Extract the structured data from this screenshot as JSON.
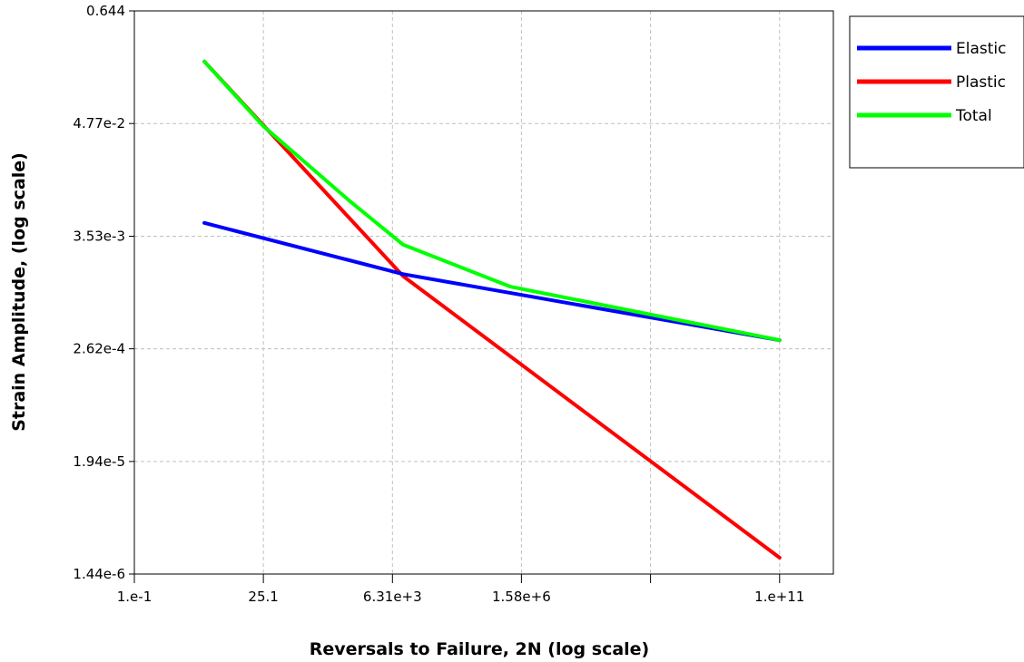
{
  "chart_data": {
    "type": "line",
    "x_scale": "log",
    "y_scale": "log",
    "xlabel": "Reversals to Failure, 2N (log scale)",
    "ylabel": "Strain Amplitude, (log scale)",
    "xlim": [
      0.1,
      1000000000000
    ],
    "ylim": [
      1.44e-06,
      0.644
    ],
    "x_ticks": [
      {
        "value": 0.1,
        "label": "1.e-1"
      },
      {
        "value": 25.1,
        "label": "25.1"
      },
      {
        "value": 6310,
        "label": "6.31e+3"
      },
      {
        "value": 1580000,
        "label": "1.58e+6"
      },
      {
        "value": 398000000,
        "label": ""
      },
      {
        "value": 100000000000,
        "label": "1.e+11"
      }
    ],
    "y_ticks": [
      {
        "value": 1.44e-06,
        "label": "1.44e-6"
      },
      {
        "value": 1.94e-05,
        "label": "1.94e-5"
      },
      {
        "value": 0.000262,
        "label": "2.62e-4"
      },
      {
        "value": 0.00353,
        "label": "3.53e-3"
      },
      {
        "value": 0.0477,
        "label": "4.77e-2"
      },
      {
        "value": 0.644,
        "label": "0.644"
      }
    ],
    "grid": true,
    "legend_position": "right",
    "series": [
      {
        "name": "Elastic",
        "color": "#0000ff",
        "points": [
          [
            2,
            0.0048
          ],
          [
            10000,
            0.00147
          ],
          [
            100000000000,
            0.00032
          ]
        ]
      },
      {
        "name": "Plastic",
        "color": "#ff0000",
        "points": [
          [
            2,
            0.2
          ],
          [
            10000,
            0.0014
          ],
          [
            100000000000,
            2.1e-06
          ]
        ]
      },
      {
        "name": "Total",
        "color": "#00ff00",
        "points": [
          [
            2,
            0.2
          ],
          [
            25,
            0.045
          ],
          [
            1000,
            0.008
          ],
          [
            10000,
            0.0029
          ],
          [
            1000000,
            0.0011
          ],
          [
            100000000000,
            0.00032
          ]
        ]
      }
    ]
  }
}
